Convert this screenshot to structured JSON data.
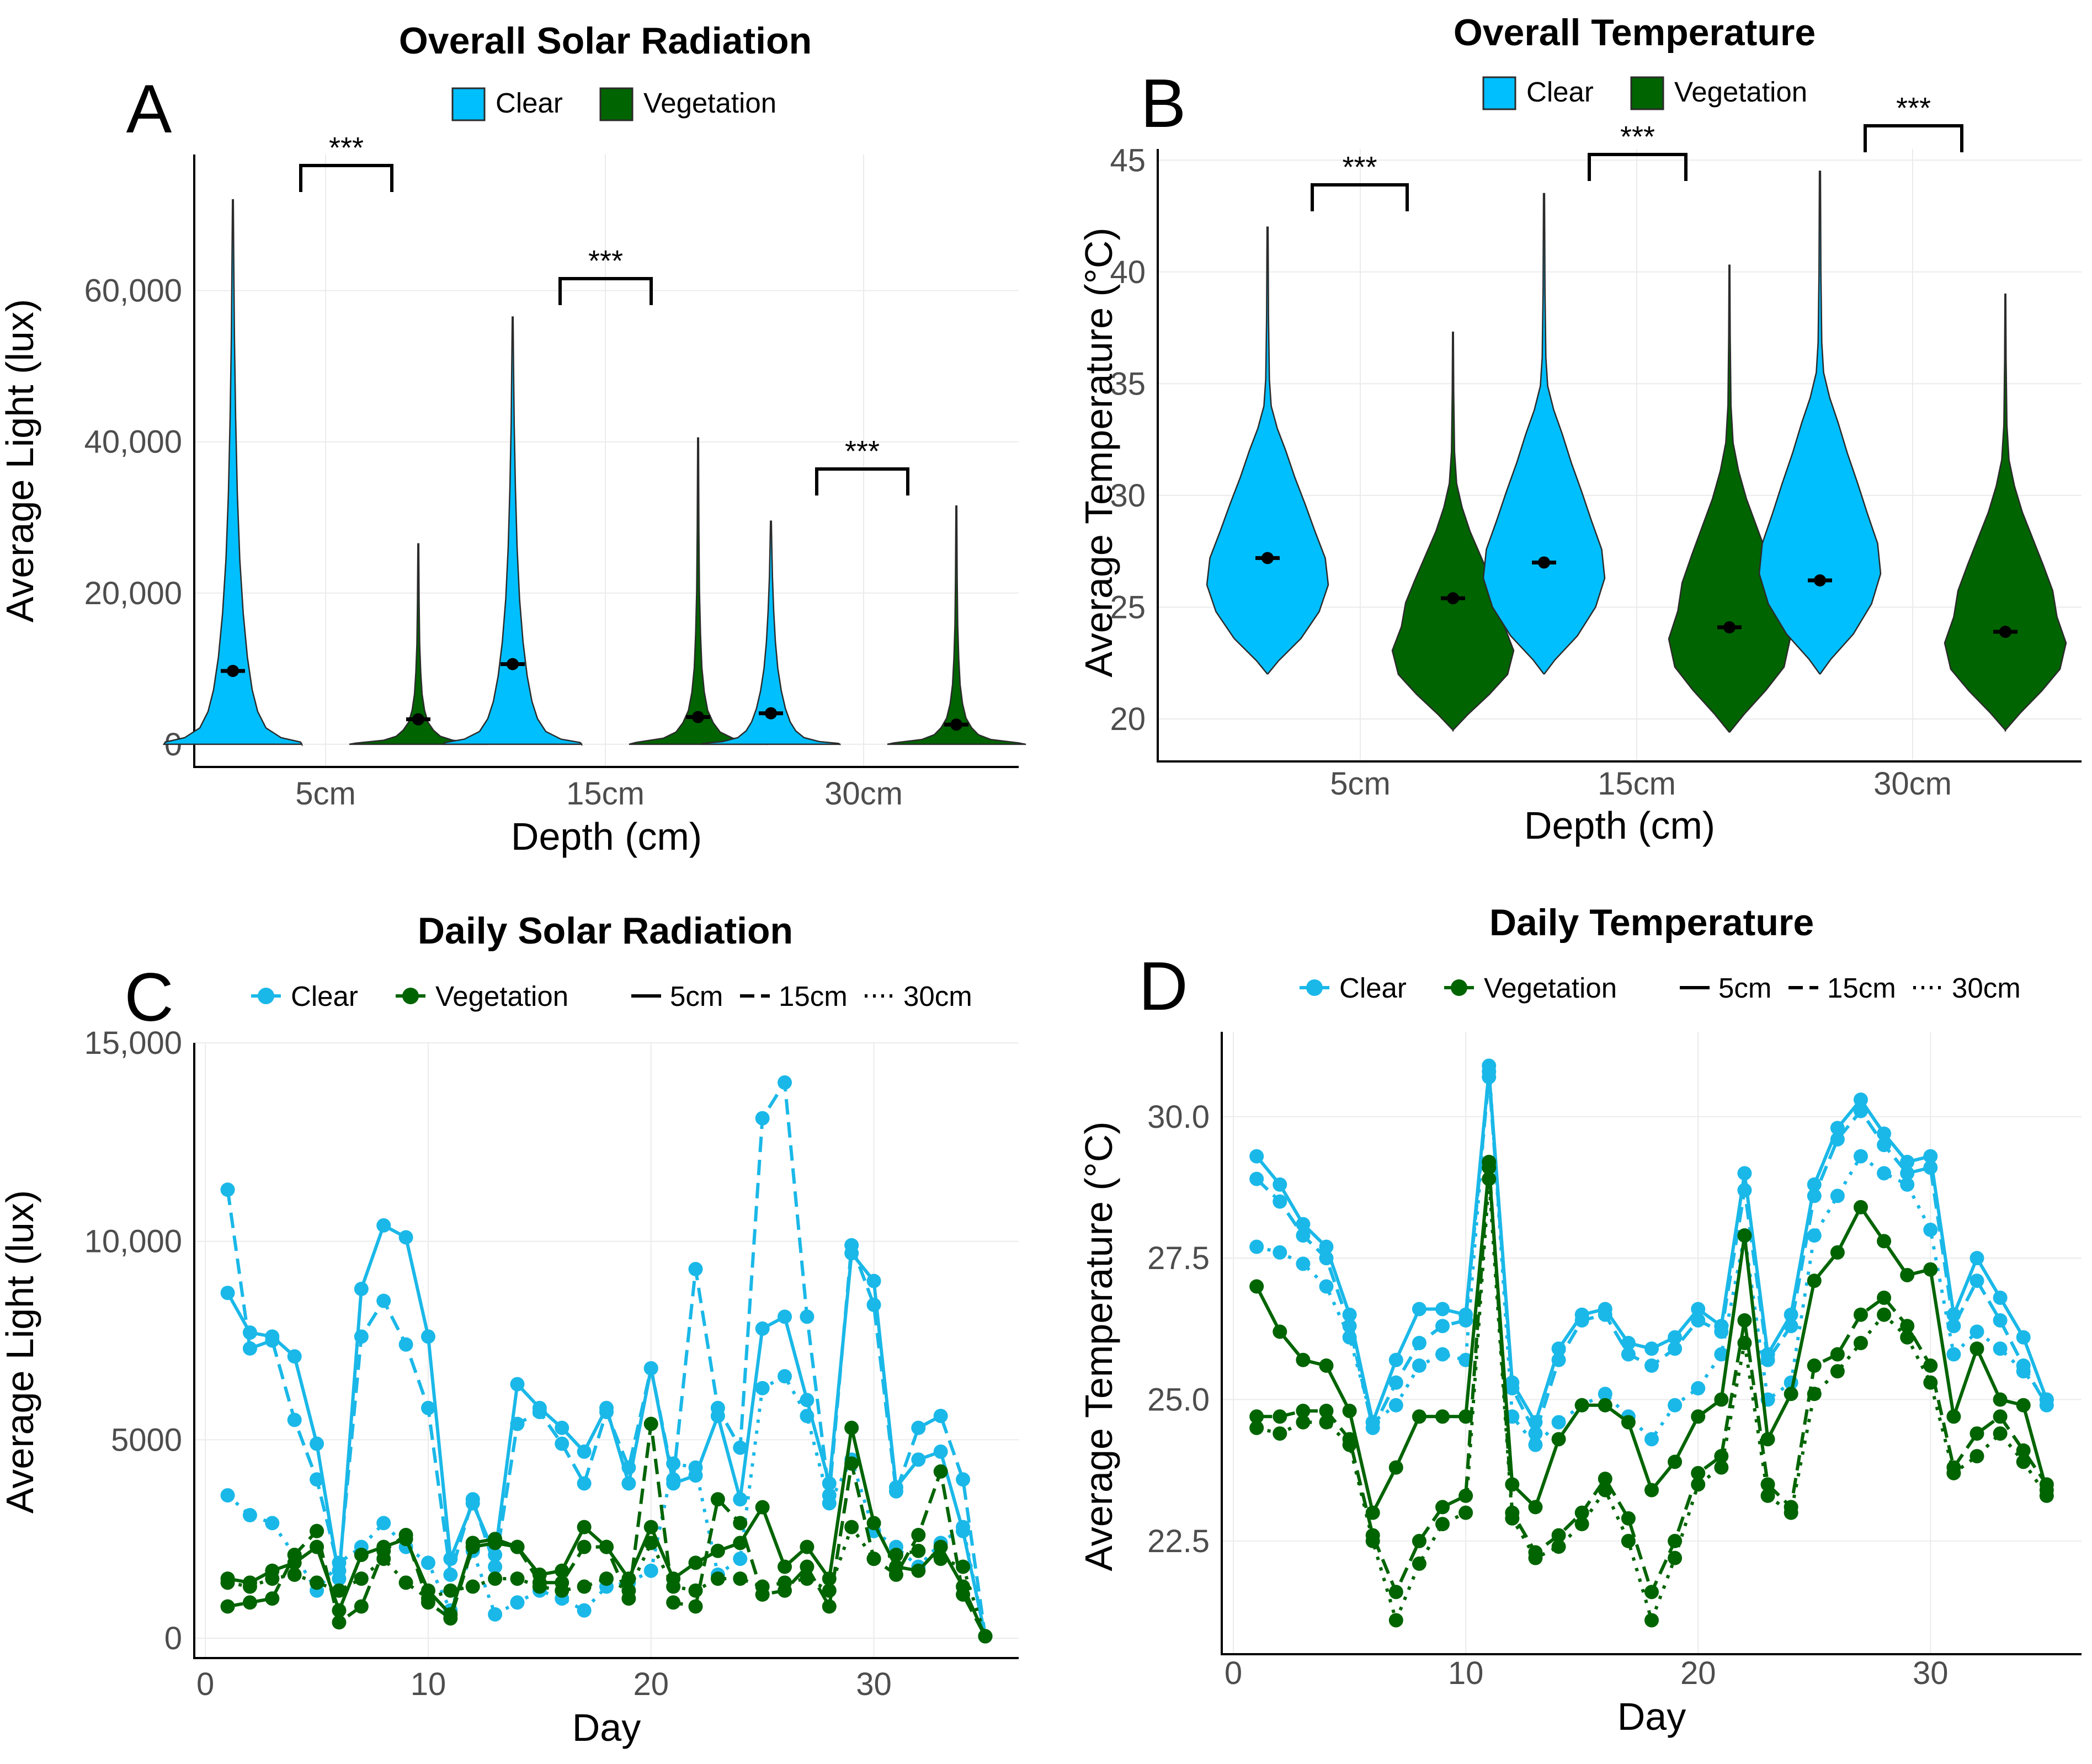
{
  "colors": {
    "clear": "#00bfff",
    "vegetation": "#006400",
    "clear_line": "#1ab8e8",
    "outline": "#2b2b2b"
  },
  "legends": {
    "groups": [
      "Clear",
      "Vegetation"
    ],
    "depths": [
      "5cm",
      "15cm",
      "30cm"
    ]
  },
  "chart_data": [
    {
      "id": "A",
      "panel_label": "A",
      "type": "violin",
      "title": "Overall Solar Radiation",
      "xlabel": "Depth (cm)",
      "ylabel": "Average Light (lux)",
      "ylim": [
        -3000,
        78000
      ],
      "yticks": [
        0,
        20000,
        40000,
        60000
      ],
      "ytick_labels": [
        "0",
        "20,000",
        "40,000",
        "60,000"
      ],
      "categories": [
        "5cm",
        "15cm",
        "30cm"
      ],
      "series": [
        {
          "name": "Clear",
          "means": [
            9700,
            10600,
            4100
          ],
          "max": [
            72000,
            56500,
            29500
          ],
          "widths": [
            0.75,
            0.75,
            0.75
          ]
        },
        {
          "name": "Vegetation",
          "means": [
            3300,
            3600,
            2600
          ],
          "max": [
            26500,
            40500,
            31500
          ],
          "widths": [
            0.78,
            0.78,
            0.78
          ]
        }
      ],
      "annotations": [
        "***",
        "***",
        "***"
      ]
    },
    {
      "id": "B",
      "panel_label": "B",
      "type": "violin",
      "title": "Overall Temperature",
      "xlabel": "Depth (cm)",
      "ylabel": "Average Temperature (°C)",
      "ylim": [
        18.1,
        45.5
      ],
      "yticks": [
        20,
        25,
        30,
        35,
        40,
        45
      ],
      "ytick_labels": [
        "20",
        "25",
        "30",
        "35",
        "40",
        "45"
      ],
      "categories": [
        "5cm",
        "15cm",
        "30cm"
      ],
      "series": [
        {
          "name": "Clear",
          "means": [
            27.2,
            27.0,
            26.2
          ],
          "min": [
            22.0,
            22.0,
            22.0
          ],
          "max": [
            42.0,
            43.5,
            44.5
          ]
        },
        {
          "name": "Vegetation",
          "means": [
            25.4,
            24.1,
            23.9
          ],
          "min": [
            19.5,
            19.4,
            19.5
          ],
          "max": [
            37.3,
            40.3,
            39.0
          ]
        }
      ],
      "annotations": [
        "***",
        "***",
        "***"
      ]
    },
    {
      "id": "C",
      "panel_label": "C",
      "type": "line",
      "title": "Daily Solar Radiation",
      "xlabel": "Day",
      "ylabel": "Average Light (lux)",
      "xlim": [
        -0.5,
        36.5
      ],
      "ylim": [
        -500,
        15000
      ],
      "xticks": [
        0,
        10,
        20,
        30
      ],
      "yticks": [
        0,
        5000,
        10000,
        15000
      ],
      "ytick_labels": [
        "0",
        "5000",
        "10,000",
        "15,000"
      ],
      "x": [
        1,
        2,
        3,
        4,
        5,
        6,
        7,
        8,
        9,
        10,
        11,
        12,
        13,
        14,
        15,
        16,
        17,
        18,
        19,
        20,
        21,
        22,
        23,
        24,
        25,
        26,
        27,
        28,
        29,
        30,
        31,
        32,
        33,
        34,
        35
      ],
      "series": [
        {
          "name": "Clear 5cm",
          "group": "Clear",
          "depth": "5cm",
          "values": [
            8700,
            7700,
            7600,
            7100,
            4900,
            1500,
            8800,
            10400,
            10100,
            7600,
            2000,
            3400,
            2100,
            6400,
            5800,
            5300,
            4700,
            5800,
            3900,
            6800,
            3900,
            4100,
            5600,
            3500,
            7800,
            8100,
            6000,
            3900,
            9700,
            9000,
            3800,
            4500,
            4700,
            2700,
            50
          ]
        },
        {
          "name": "Clear 15cm",
          "group": "Clear",
          "depth": "15cm",
          "values": [
            11300,
            7300,
            7500,
            5500,
            4000,
            1700,
            7600,
            8500,
            7400,
            5800,
            1600,
            3500,
            1800,
            5400,
            5700,
            4900,
            3900,
            5700,
            4300,
            6800,
            4000,
            9300,
            5800,
            4800,
            13100,
            14000,
            8100,
            3600,
            9900,
            8400,
            3700,
            5300,
            5600,
            4000,
            50
          ]
        },
        {
          "name": "Clear 30cm",
          "group": "Clear",
          "depth": "30cm",
          "values": [
            3600,
            3100,
            2900,
            2100,
            1200,
            1900,
            2300,
            2900,
            2300,
            1900,
            700,
            2200,
            600,
            900,
            1200,
            1000,
            700,
            1300,
            1400,
            1700,
            4400,
            4300,
            1600,
            2000,
            6300,
            6600,
            5600,
            3400,
            4500,
            2700,
            2300,
            1800,
            2400,
            2800,
            50
          ]
        },
        {
          "name": "Vegetation 5cm",
          "group": "Vegetation",
          "depth": "5cm",
          "values": [
            1500,
            1400,
            1700,
            1900,
            2300,
            700,
            2100,
            2300,
            2500,
            1200,
            600,
            2400,
            2500,
            2300,
            1600,
            1700,
            2800,
            2300,
            1500,
            2800,
            1500,
            1900,
            2200,
            2400,
            3300,
            1800,
            2300,
            1500,
            5300,
            2900,
            1800,
            1700,
            2300,
            1300,
            50
          ]
        },
        {
          "name": "Vegetation 15cm",
          "group": "Vegetation",
          "depth": "15cm",
          "values": [
            800,
            900,
            1000,
            2100,
            2700,
            400,
            800,
            2200,
            2600,
            900,
            500,
            2300,
            2400,
            2300,
            1400,
            1400,
            2300,
            2300,
            1000,
            5400,
            900,
            800,
            3500,
            2900,
            1100,
            1200,
            1800,
            800,
            4400,
            2000,
            1600,
            2600,
            4200,
            1100,
            50
          ]
        },
        {
          "name": "Vegetation 30cm",
          "group": "Vegetation",
          "depth": "30cm",
          "values": [
            1400,
            1300,
            1500,
            1600,
            1400,
            1200,
            1500,
            2000,
            1400,
            1000,
            1200,
            1300,
            1500,
            1500,
            1300,
            1200,
            1300,
            1500,
            1200,
            2400,
            1300,
            1200,
            1500,
            1500,
            1300,
            1400,
            1500,
            1200,
            2800,
            2000,
            2100,
            2200,
            2000,
            1800,
            50
          ]
        }
      ]
    },
    {
      "id": "D",
      "panel_label": "D",
      "type": "line",
      "title": "Daily Temperature",
      "xlabel": "Day",
      "ylabel": "Average Temperature (°C)",
      "xlim": [
        -0.5,
        36.5
      ],
      "ylim": [
        20.5,
        31.5
      ],
      "xticks": [
        0,
        10,
        20,
        30
      ],
      "yticks": [
        22.5,
        25.0,
        27.5,
        30.0
      ],
      "ytick_labels": [
        "22.5",
        "25.0",
        "27.5",
        "30.0"
      ],
      "x": [
        1,
        2,
        3,
        4,
        5,
        6,
        7,
        8,
        9,
        10,
        11,
        12,
        13,
        14,
        15,
        16,
        17,
        18,
        19,
        20,
        21,
        22,
        23,
        24,
        25,
        26,
        27,
        28,
        29,
        30,
        31,
        32,
        33,
        34,
        35
      ],
      "series": [
        {
          "name": "Clear 5cm",
          "group": "Clear",
          "depth": "5cm",
          "values": [
            29.3,
            28.8,
            28.1,
            27.7,
            26.5,
            24.6,
            25.7,
            26.6,
            26.6,
            26.5,
            30.8,
            25.3,
            24.6,
            25.9,
            26.5,
            26.6,
            26.0,
            25.9,
            26.1,
            26.6,
            26.3,
            29.0,
            25.8,
            26.5,
            28.8,
            29.8,
            30.3,
            29.7,
            29.2,
            29.3,
            26.5,
            27.5,
            26.8,
            26.1,
            25.0
          ]
        },
        {
          "name": "Clear 15cm",
          "group": "Clear",
          "depth": "15cm",
          "values": [
            28.9,
            28.5,
            27.9,
            27.5,
            26.3,
            24.5,
            25.3,
            26.0,
            26.3,
            26.4,
            30.7,
            25.2,
            24.4,
            25.7,
            26.4,
            26.5,
            25.8,
            25.6,
            25.9,
            26.4,
            26.2,
            28.7,
            25.7,
            26.3,
            28.6,
            29.6,
            30.1,
            29.5,
            29.0,
            29.1,
            26.3,
            27.1,
            26.4,
            25.6,
            24.9
          ]
        },
        {
          "name": "Clear 30cm",
          "group": "Clear",
          "depth": "30cm",
          "values": [
            27.7,
            27.6,
            27.4,
            27.0,
            26.1,
            24.6,
            24.9,
            25.6,
            25.8,
            25.7,
            30.9,
            24.7,
            24.2,
            24.6,
            24.9,
            25.1,
            24.7,
            24.3,
            24.9,
            25.2,
            25.8,
            27.9,
            25.0,
            25.3,
            27.9,
            28.6,
            29.3,
            29.0,
            28.8,
            28.0,
            25.8,
            26.2,
            25.9,
            25.5,
            25.0
          ]
        },
        {
          "name": "Vegetation 5cm",
          "group": "Vegetation",
          "depth": "5cm",
          "values": [
            27.0,
            26.2,
            25.7,
            25.6,
            24.8,
            23.0,
            23.8,
            24.7,
            24.7,
            24.7,
            29.1,
            23.5,
            23.1,
            24.3,
            24.9,
            24.9,
            24.6,
            23.4,
            23.9,
            24.7,
            25.0,
            27.9,
            24.3,
            25.1,
            27.1,
            27.6,
            28.4,
            27.8,
            27.2,
            27.3,
            24.7,
            25.9,
            25.0,
            24.9,
            23.4
          ]
        },
        {
          "name": "Vegetation 15cm",
          "group": "Vegetation",
          "depth": "15cm",
          "values": [
            24.7,
            24.7,
            24.8,
            24.8,
            24.3,
            22.6,
            21.6,
            22.5,
            23.1,
            23.3,
            29.2,
            23.0,
            22.3,
            22.6,
            23.0,
            23.6,
            22.9,
            21.6,
            22.5,
            23.7,
            24.0,
            26.4,
            23.5,
            23.1,
            25.6,
            25.8,
            26.5,
            26.8,
            26.3,
            25.6,
            23.8,
            24.4,
            24.7,
            24.1,
            23.5
          ]
        },
        {
          "name": "Vegetation 30cm",
          "group": "Vegetation",
          "depth": "30cm",
          "values": [
            24.5,
            24.4,
            24.6,
            24.6,
            24.2,
            22.5,
            21.1,
            22.1,
            22.8,
            23.0,
            28.9,
            22.9,
            22.2,
            22.4,
            22.8,
            23.4,
            22.5,
            21.1,
            22.2,
            23.5,
            23.8,
            26.0,
            23.3,
            23.0,
            25.1,
            25.5,
            26.0,
            26.5,
            26.1,
            25.3,
            23.7,
            24.0,
            24.4,
            23.9,
            23.3
          ]
        }
      ]
    }
  ]
}
